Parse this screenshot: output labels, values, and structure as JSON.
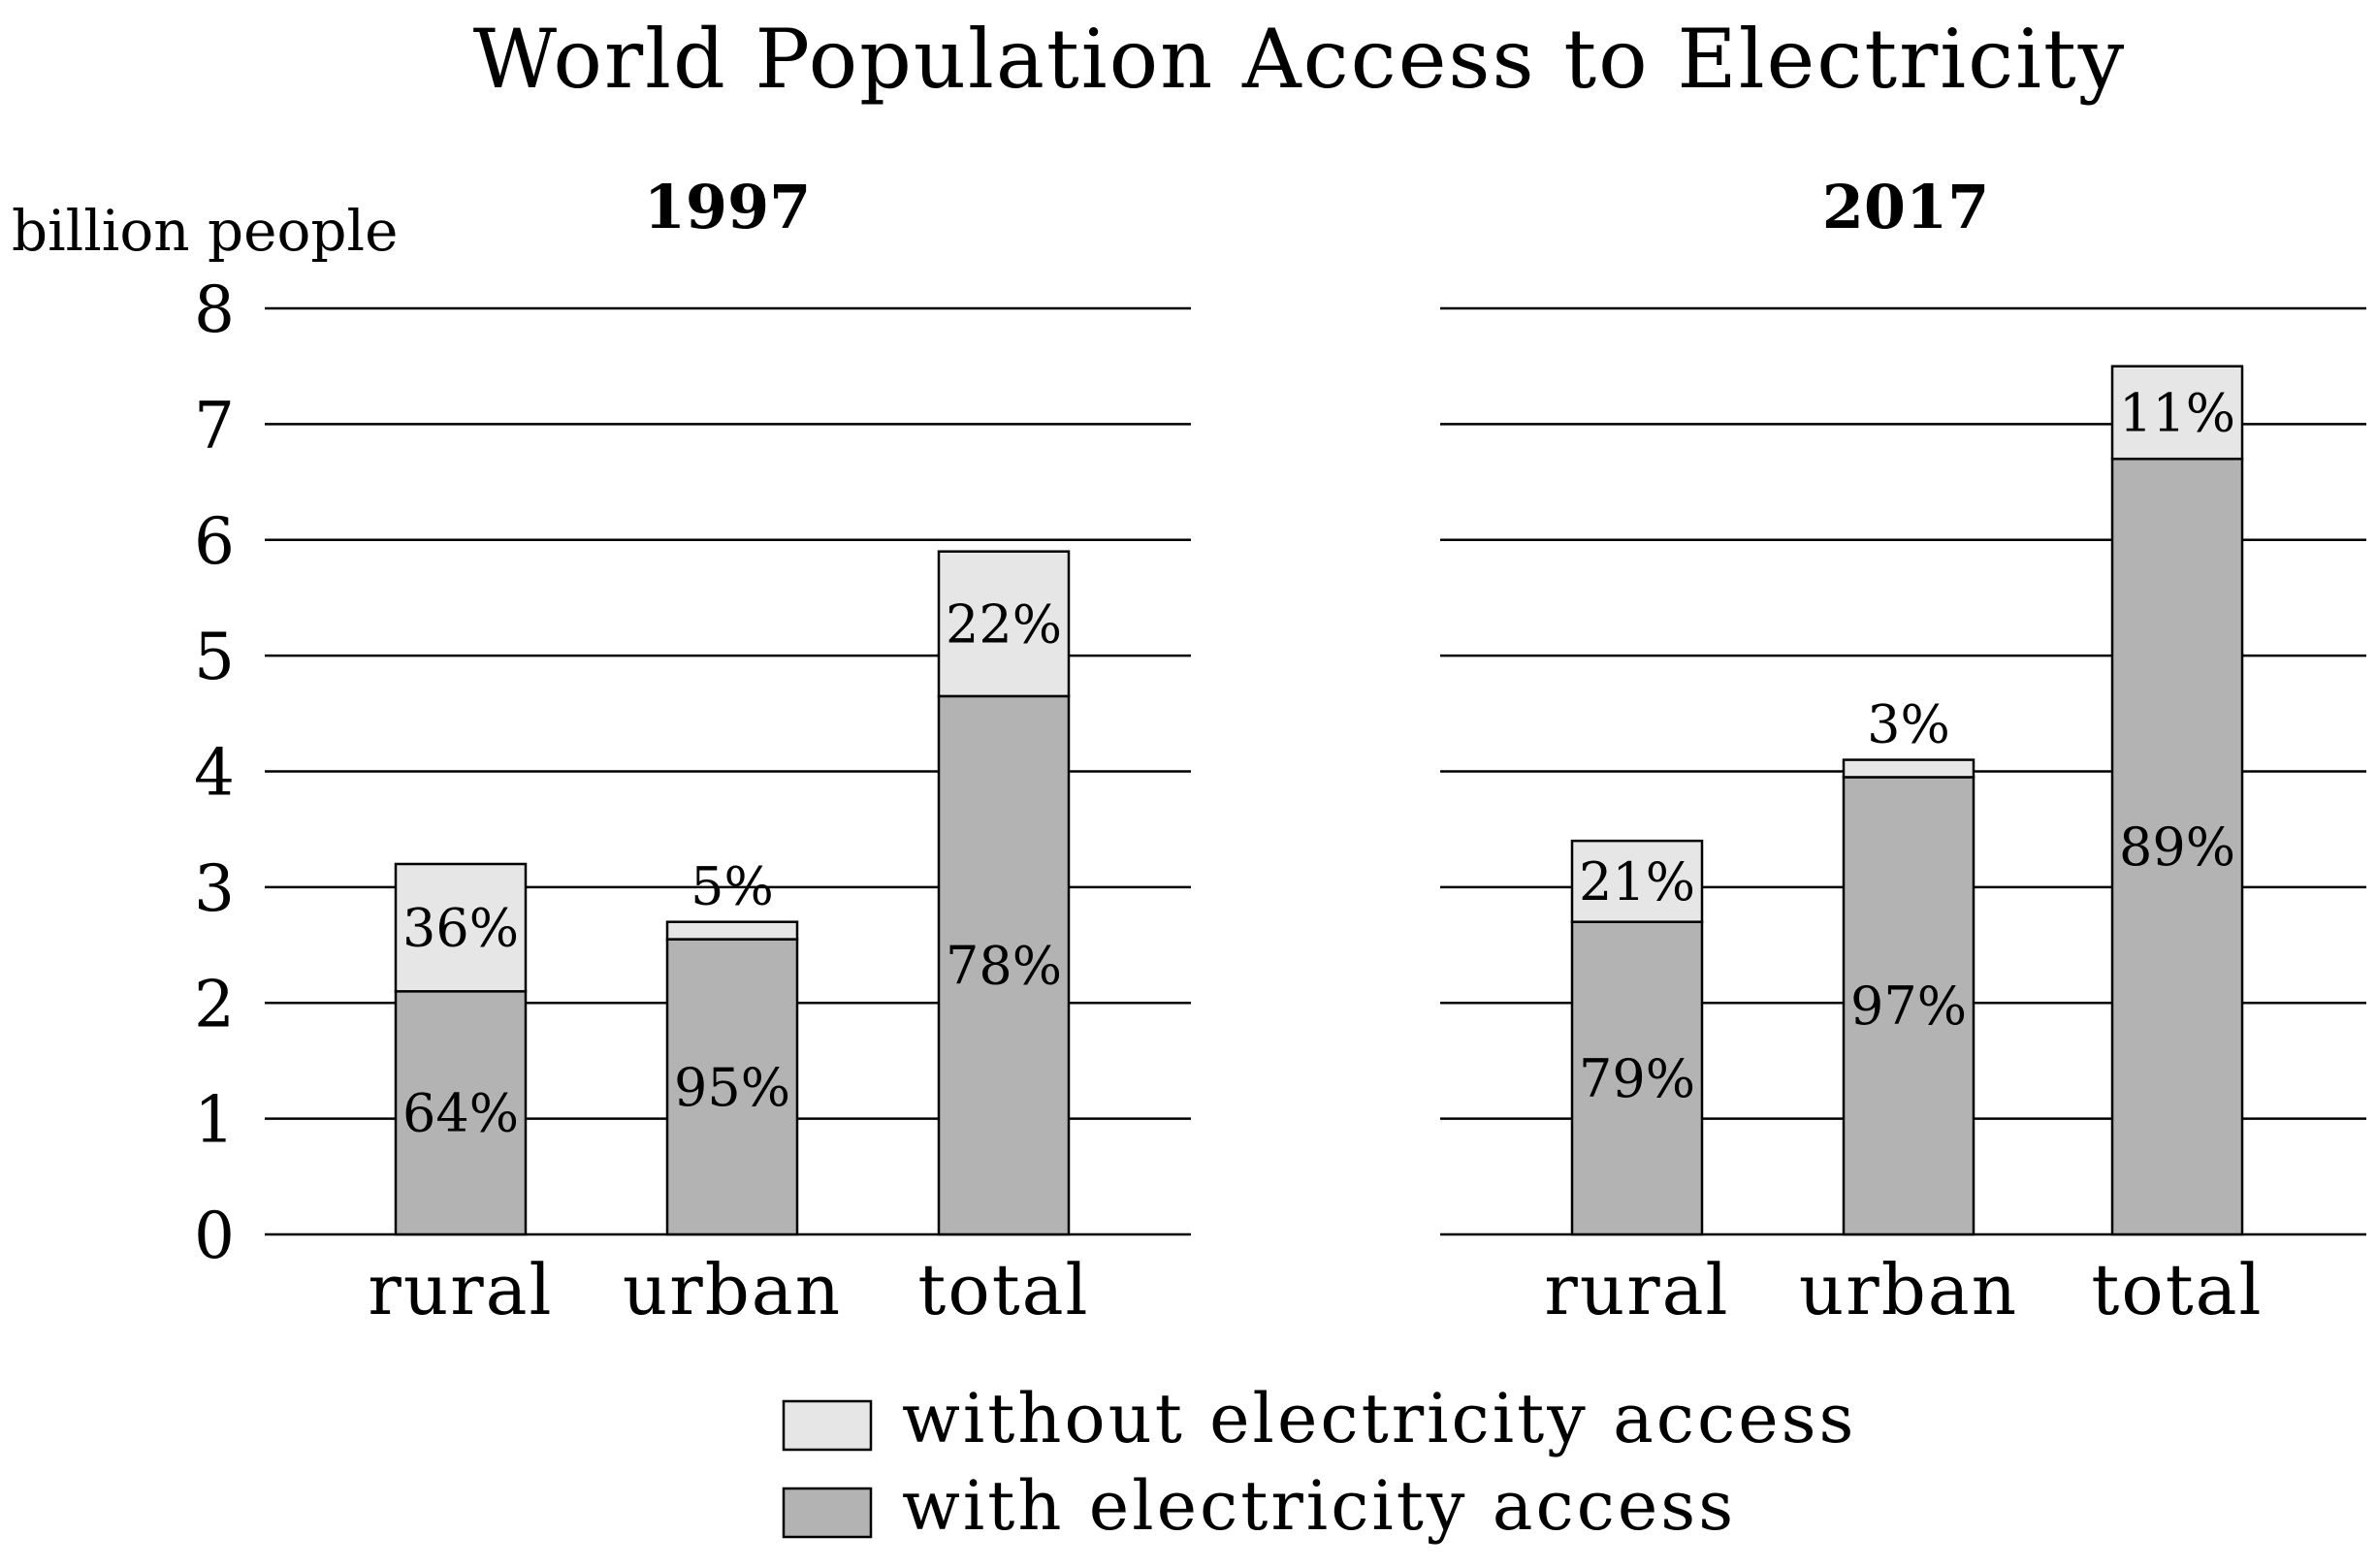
{
  "chart_data": {
    "type": "bar",
    "stacked": true,
    "title": "World Population Access to Electricity",
    "ylabel": "billion people",
    "ylim": [
      0,
      8
    ],
    "yticks": [
      "0",
      "1",
      "2",
      "3",
      "4",
      "5",
      "6",
      "7",
      "8"
    ],
    "grid": true,
    "legend_position": "bottom",
    "legend": [
      {
        "label": "without electricity access",
        "color": "#e6e6e6"
      },
      {
        "label": "with electricity access",
        "color": "#b3b3b3"
      }
    ],
    "panels": [
      {
        "title": "1997",
        "categories": [
          "rural",
          "urban",
          "total"
        ],
        "series": [
          {
            "name": "with electricity access",
            "values": [
              2.1,
              2.55,
              4.65
            ],
            "labels": [
              "64%",
              "95%",
              "78%"
            ]
          },
          {
            "name": "without electricity access",
            "values": [
              1.1,
              0.15,
              1.25
            ],
            "labels": [
              "36%",
              "5%",
              "22%"
            ]
          }
        ]
      },
      {
        "title": "2017",
        "categories": [
          "rural",
          "urban",
          "total"
        ],
        "series": [
          {
            "name": "with electricity access",
            "values": [
              2.7,
              3.95,
              6.7
            ],
            "labels": [
              "79%",
              "97%",
              "89%"
            ]
          },
          {
            "name": "without electricity access",
            "values": [
              0.7,
              0.15,
              0.8
            ],
            "labels": [
              "21%",
              "3%",
              "11%"
            ]
          }
        ]
      }
    ]
  }
}
